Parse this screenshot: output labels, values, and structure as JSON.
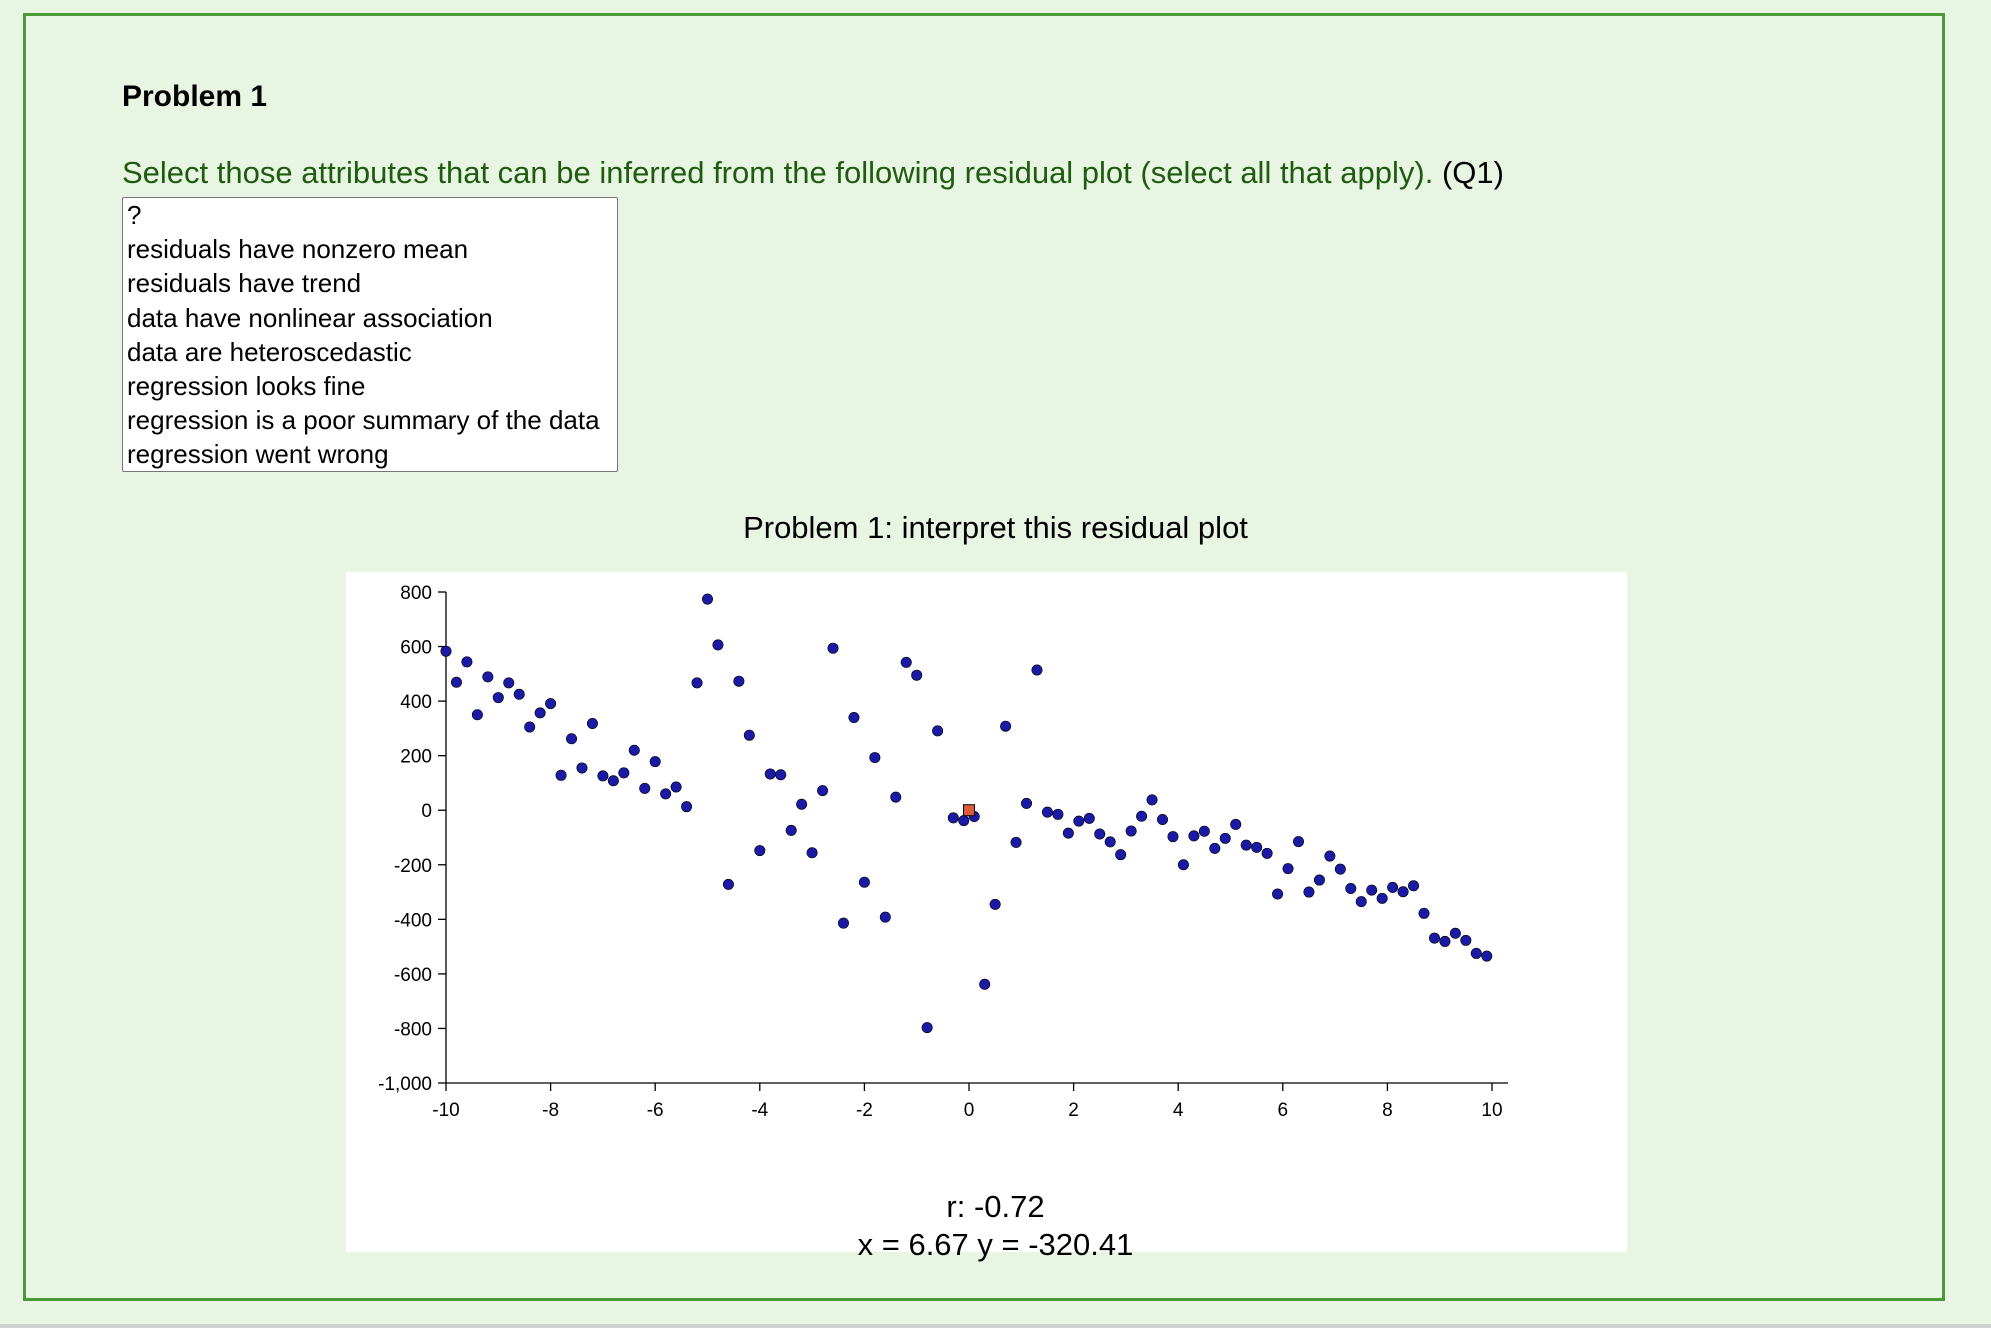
{
  "problem": {
    "title": "Problem 1",
    "question": "Select those attributes that can be inferred from the following residual plot (select all that apply).",
    "question_id": "(Q1)",
    "options": [
      "?",
      "residuals have nonzero mean",
      "residuals have trend",
      "data have nonlinear association",
      "data are heteroscedastic",
      "regression looks fine",
      "regression is a poor summary of the data",
      "regression went wrong"
    ]
  },
  "stats": {
    "r_text": "r: -0.72",
    "xy_text": "x = 6.67 y = -320.41"
  },
  "colors": {
    "point": "#1a1aa6",
    "marker": "#e05a3a",
    "frame": "#4a9a3a",
    "question": "#1f5c10"
  },
  "chart_data": {
    "type": "scatter",
    "title": "Problem 1: interpret this residual plot",
    "xlabel": "",
    "ylabel": "",
    "xlim": [
      -10,
      10
    ],
    "ylim": [
      -1000,
      800
    ],
    "x_ticks": [
      -10,
      -8,
      -6,
      -4,
      -2,
      0,
      2,
      4,
      6,
      8,
      10
    ],
    "x_tick_labels": [
      "-10",
      "-8",
      "-6",
      "-4",
      "-2",
      "0",
      "2",
      "4",
      "6",
      "8",
      "10"
    ],
    "y_ticks": [
      800,
      600,
      400,
      200,
      0,
      -200,
      -400,
      -600,
      -800,
      -1000
    ],
    "y_tick_labels": [
      "800",
      "600",
      "400",
      "200",
      "0",
      "-200",
      "-400",
      "-600",
      "-800",
      "-1,000"
    ],
    "marker_point": {
      "x": 0,
      "y": 0
    },
    "points": [
      {
        "x": -10.0,
        "y": 583
      },
      {
        "x": -9.8,
        "y": 469
      },
      {
        "x": -9.6,
        "y": 544
      },
      {
        "x": -9.4,
        "y": 350
      },
      {
        "x": -9.2,
        "y": 489
      },
      {
        "x": -9.0,
        "y": 413
      },
      {
        "x": -8.8,
        "y": 467
      },
      {
        "x": -8.6,
        "y": 425
      },
      {
        "x": -8.4,
        "y": 305
      },
      {
        "x": -8.2,
        "y": 357
      },
      {
        "x": -8.0,
        "y": 391
      },
      {
        "x": -7.8,
        "y": 128
      },
      {
        "x": -7.6,
        "y": 262
      },
      {
        "x": -7.4,
        "y": 155
      },
      {
        "x": -7.2,
        "y": 318
      },
      {
        "x": -7.0,
        "y": 126
      },
      {
        "x": -6.8,
        "y": 108
      },
      {
        "x": -6.6,
        "y": 137
      },
      {
        "x": -6.4,
        "y": 220
      },
      {
        "x": -6.2,
        "y": 80
      },
      {
        "x": -6.0,
        "y": 178
      },
      {
        "x": -5.8,
        "y": 60
      },
      {
        "x": -5.6,
        "y": 85
      },
      {
        "x": -5.4,
        "y": 13
      },
      {
        "x": -5.2,
        "y": 467
      },
      {
        "x": -5.0,
        "y": 774
      },
      {
        "x": -4.8,
        "y": 606
      },
      {
        "x": -4.6,
        "y": -272
      },
      {
        "x": -4.4,
        "y": 473
      },
      {
        "x": -4.2,
        "y": 275
      },
      {
        "x": -4.0,
        "y": -148
      },
      {
        "x": -3.8,
        "y": 133
      },
      {
        "x": -3.6,
        "y": 130
      },
      {
        "x": -3.4,
        "y": -74
      },
      {
        "x": -3.2,
        "y": 22
      },
      {
        "x": -3.0,
        "y": -156
      },
      {
        "x": -2.8,
        "y": 72
      },
      {
        "x": -2.6,
        "y": 594
      },
      {
        "x": -2.4,
        "y": -414
      },
      {
        "x": -2.2,
        "y": 340
      },
      {
        "x": -2.0,
        "y": -264
      },
      {
        "x": -1.8,
        "y": 193
      },
      {
        "x": -1.6,
        "y": -392
      },
      {
        "x": -1.4,
        "y": 48
      },
      {
        "x": -1.2,
        "y": 542
      },
      {
        "x": -1.0,
        "y": 495
      },
      {
        "x": -0.8,
        "y": -797
      },
      {
        "x": -0.6,
        "y": 291
      },
      {
        "x": -0.3,
        "y": -28
      },
      {
        "x": -0.1,
        "y": -38
      },
      {
        "x": 0.1,
        "y": -23
      },
      {
        "x": 0.3,
        "y": -638
      },
      {
        "x": 0.5,
        "y": -345
      },
      {
        "x": 0.7,
        "y": 308
      },
      {
        "x": 0.9,
        "y": -118
      },
      {
        "x": 1.1,
        "y": 25
      },
      {
        "x": 1.3,
        "y": 514
      },
      {
        "x": 1.5,
        "y": -7
      },
      {
        "x": 1.7,
        "y": -15
      },
      {
        "x": 1.9,
        "y": -84
      },
      {
        "x": 2.1,
        "y": -40
      },
      {
        "x": 2.3,
        "y": -30
      },
      {
        "x": 2.5,
        "y": -87
      },
      {
        "x": 2.7,
        "y": -116
      },
      {
        "x": 2.9,
        "y": -163
      },
      {
        "x": 3.1,
        "y": -76
      },
      {
        "x": 3.3,
        "y": -22
      },
      {
        "x": 3.5,
        "y": 38
      },
      {
        "x": 3.7,
        "y": -34
      },
      {
        "x": 3.9,
        "y": -97
      },
      {
        "x": 4.1,
        "y": -200
      },
      {
        "x": 4.3,
        "y": -94
      },
      {
        "x": 4.5,
        "y": -77
      },
      {
        "x": 4.7,
        "y": -140
      },
      {
        "x": 4.9,
        "y": -103
      },
      {
        "x": 5.1,
        "y": -52
      },
      {
        "x": 5.3,
        "y": -128
      },
      {
        "x": 5.5,
        "y": -136
      },
      {
        "x": 5.7,
        "y": -158
      },
      {
        "x": 5.9,
        "y": -307
      },
      {
        "x": 6.1,
        "y": -214
      },
      {
        "x": 6.3,
        "y": -115
      },
      {
        "x": 6.5,
        "y": -300
      },
      {
        "x": 6.7,
        "y": -256
      },
      {
        "x": 6.9,
        "y": -168
      },
      {
        "x": 7.1,
        "y": -216
      },
      {
        "x": 7.3,
        "y": -287
      },
      {
        "x": 7.5,
        "y": -335
      },
      {
        "x": 7.7,
        "y": -293
      },
      {
        "x": 7.9,
        "y": -323
      },
      {
        "x": 8.1,
        "y": -283
      },
      {
        "x": 8.3,
        "y": -299
      },
      {
        "x": 8.5,
        "y": -277
      },
      {
        "x": 8.7,
        "y": -378
      },
      {
        "x": 8.9,
        "y": -469
      },
      {
        "x": 9.1,
        "y": -481
      },
      {
        "x": 9.3,
        "y": -451
      },
      {
        "x": 9.5,
        "y": -477
      },
      {
        "x": 9.7,
        "y": -525
      },
      {
        "x": 9.9,
        "y": -535
      }
    ]
  }
}
